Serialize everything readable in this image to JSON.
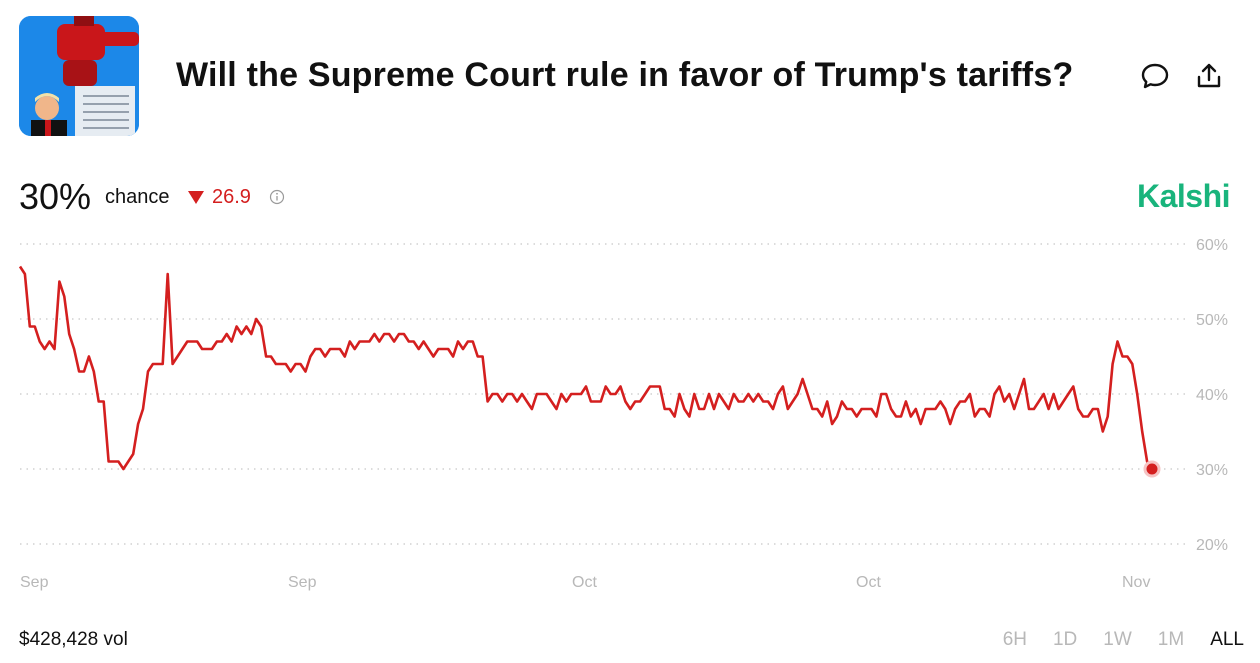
{
  "market": {
    "title": "Will the Supreme Court rule in favor of Trump's tariffs?",
    "probability": "30%",
    "chance_label": "chance",
    "change": "26.9",
    "change_direction": "down",
    "brand": "Kalshi",
    "volume": "$428,428 vol"
  },
  "colors": {
    "line": "#d41f1f",
    "brand": "#19b47c",
    "muted": "#b8b8b8"
  },
  "icons": [
    "comment-icon",
    "share-icon",
    "info-icon",
    "down-triangle-icon"
  ],
  "time_ranges": [
    {
      "label": "6H",
      "active": false
    },
    {
      "label": "1D",
      "active": false
    },
    {
      "label": "1W",
      "active": false
    },
    {
      "label": "1M",
      "active": false
    },
    {
      "label": "ALL",
      "active": true
    }
  ],
  "chart_data": {
    "type": "line",
    "y_ticks": [
      "60%",
      "50%",
      "40%",
      "30%",
      "20%"
    ],
    "ylim": [
      20,
      60
    ],
    "x_tick_labels": [
      "Sep",
      "Sep",
      "Oct",
      "Oct",
      "Nov"
    ],
    "grid": true,
    "series": [
      {
        "values": [
          57,
          56,
          49,
          49,
          47,
          46,
          47,
          46,
          55,
          53,
          48,
          46,
          43,
          43,
          45,
          43,
          39,
          39,
          31,
          31,
          31,
          30,
          31,
          32,
          36,
          38,
          43,
          44,
          44,
          44,
          56,
          44,
          45,
          46,
          47,
          47,
          47,
          46,
          46,
          46,
          47,
          47,
          48,
          47,
          49,
          48,
          49,
          48,
          50,
          49,
          45,
          45,
          44,
          44,
          44,
          43,
          44,
          44,
          43,
          45,
          46,
          46,
          45,
          46,
          46,
          46,
          45,
          47,
          46,
          47,
          47,
          47,
          48,
          47,
          48,
          48,
          47,
          48,
          48,
          47,
          47,
          46,
          47,
          46,
          45,
          46,
          46,
          46,
          45,
          47,
          46,
          47,
          47,
          45,
          45,
          39,
          40,
          40,
          39,
          40,
          40,
          39,
          40,
          39,
          38,
          40,
          40,
          40,
          39,
          38,
          40,
          39,
          40,
          40,
          40,
          41,
          39,
          39,
          39,
          41,
          40,
          40,
          41,
          39,
          38,
          39,
          39,
          40,
          41,
          41,
          41,
          38,
          38,
          37,
          40,
          38,
          37,
          40,
          38,
          38,
          40,
          38,
          40,
          39,
          38,
          40,
          39,
          39,
          40,
          39,
          40,
          39,
          39,
          38,
          40,
          41,
          38,
          39,
          40,
          42,
          40,
          38,
          38,
          37,
          39,
          36,
          37,
          39,
          38,
          38,
          37,
          38,
          38,
          38,
          37,
          40,
          40,
          38,
          37,
          37,
          39,
          37,
          38,
          36,
          38,
          38,
          38,
          39,
          38,
          36,
          38,
          39,
          39,
          40,
          37,
          38,
          38,
          37,
          40,
          41,
          39,
          40,
          38,
          40,
          42,
          38,
          38,
          39,
          40,
          38,
          40,
          38,
          39,
          40,
          41,
          38,
          37,
          37,
          38,
          38,
          35,
          37,
          44,
          47,
          45,
          45,
          44,
          40,
          35,
          31,
          30
        ]
      }
    ]
  }
}
